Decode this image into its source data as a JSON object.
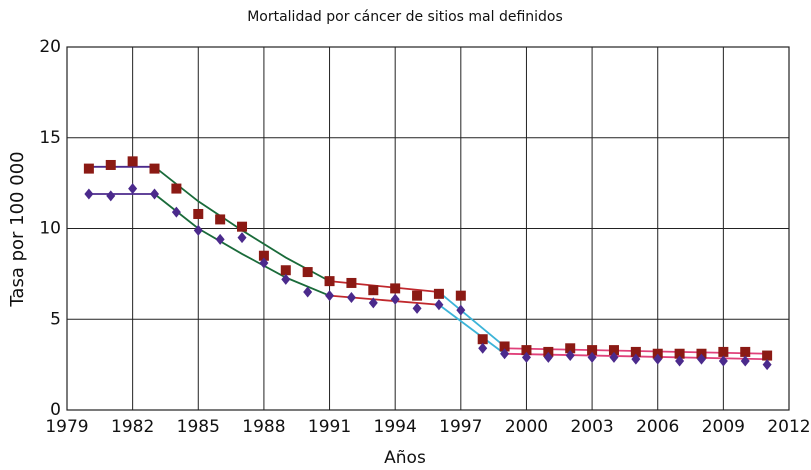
{
  "chart_data": {
    "type": "scatter",
    "title": "Mortalidad por cáncer de sitios mal definidos",
    "x_label": "Años",
    "y_label": "Tasa por 100 000",
    "x": [
      1980,
      1981,
      1982,
      1983,
      1984,
      1985,
      1986,
      1987,
      1988,
      1989,
      1990,
      1991,
      1992,
      1993,
      1994,
      1995,
      1996,
      1997,
      1998,
      1999,
      2000,
      2001,
      2002,
      2003,
      2004,
      2005,
      2006,
      2007,
      2008,
      2009,
      2010,
      2011
    ],
    "series": [
      {
        "color": "#8b1a14",
        "marker": "square",
        "values": [
          13.3,
          13.5,
          13.7,
          13.3,
          12.2,
          10.8,
          10.5,
          10.1,
          8.5,
          7.7,
          7.6,
          7.1,
          7.0,
          6.6,
          6.7,
          6.3,
          6.4,
          6.3,
          3.9,
          3.5,
          3.3,
          3.2,
          3.4,
          3.3,
          3.3,
          3.2,
          3.1,
          3.1,
          3.1,
          3.2,
          3.2,
          3.0
        ]
      },
      {
        "color": "#4b2a8c",
        "marker": "diamond",
        "values": [
          11.9,
          11.8,
          12.2,
          11.9,
          10.9,
          9.9,
          9.4,
          9.5,
          8.1,
          7.2,
          6.5,
          6.3,
          6.2,
          5.9,
          6.1,
          5.6,
          5.8,
          5.5,
          3.4,
          3.1,
          2.9,
          2.9,
          3.0,
          2.9,
          2.9,
          2.8,
          2.8,
          2.7,
          2.8,
          2.7,
          2.7,
          2.5
        ]
      }
    ],
    "trend_lines": [
      {
        "color": "#4b2a8c",
        "x": [
          1980,
          1983
        ],
        "values": [
          13.4,
          13.4
        ]
      },
      {
        "color": "#1a6b3a",
        "x": [
          1983,
          1985,
          1987,
          1989,
          1991
        ],
        "values": [
          13.4,
          11.5,
          9.9,
          8.4,
          7.1
        ]
      },
      {
        "color": "#c0282d",
        "x": [
          1991,
          1996
        ],
        "values": [
          7.1,
          6.5
        ]
      },
      {
        "color": "#3cb4d8",
        "x": [
          1996,
          1999
        ],
        "values": [
          6.5,
          3.5
        ]
      },
      {
        "color": "#e0407a",
        "x": [
          1999,
          2011
        ],
        "values": [
          3.4,
          3.1
        ]
      },
      {
        "color": "#4b2a8c",
        "x": [
          1980,
          1983
        ],
        "values": [
          11.9,
          11.9
        ]
      },
      {
        "color": "#1a6b3a",
        "x": [
          1983,
          1985,
          1987,
          1989,
          1991
        ],
        "values": [
          11.9,
          10.0,
          8.6,
          7.3,
          6.3
        ]
      },
      {
        "color": "#c0282d",
        "x": [
          1991,
          1996
        ],
        "values": [
          6.3,
          5.8
        ]
      },
      {
        "color": "#3cb4d8",
        "x": [
          1996,
          1999
        ],
        "values": [
          5.8,
          3.1
        ]
      },
      {
        "color": "#e0407a",
        "x": [
          1999,
          2011
        ],
        "values": [
          3.1,
          2.8
        ]
      }
    ],
    "xlim": [
      1979,
      2012
    ],
    "xticks": [
      1979,
      1982,
      1985,
      1988,
      1991,
      1994,
      1997,
      2000,
      2003,
      2006,
      2009,
      2012
    ],
    "ylim": [
      0,
      20
    ],
    "yticks": [
      0,
      5,
      10,
      15,
      20
    ],
    "grid": true
  }
}
